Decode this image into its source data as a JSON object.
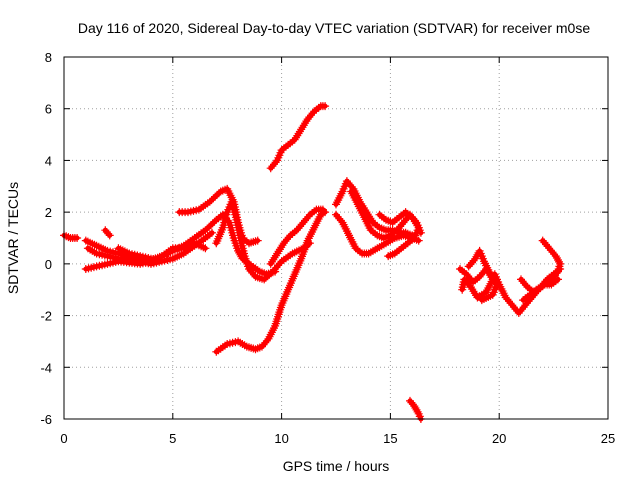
{
  "chart_data": {
    "type": "scatter",
    "title": "Day 116 of 2020, Sidereal Day-to-day VTEC variation (SDTVAR) for receiver m0se",
    "xlabel": "GPS time / hours",
    "ylabel": "SDTVAR / TECUs",
    "xlim": [
      0,
      25
    ],
    "ylim": [
      -6,
      8
    ],
    "xticks": [
      "0",
      "5",
      "10",
      "15",
      "20",
      "25"
    ],
    "yticks": [
      "-6",
      "-4",
      "-2",
      "0",
      "2",
      "4",
      "6",
      "8"
    ],
    "grid": true,
    "marker": "plus",
    "colors": {
      "series": "#ff0000",
      "axes": "#000000",
      "grid": "#a0a0a0"
    },
    "series": [
      {
        "points": [
          [
            0.0,
            1.1
          ],
          [
            0.3,
            1.0
          ],
          [
            0.6,
            1.0
          ]
        ]
      },
      {
        "points": [
          [
            1.0,
            0.9
          ],
          [
            1.5,
            0.7
          ],
          [
            2.0,
            0.5
          ],
          [
            2.5,
            0.4
          ],
          [
            3.0,
            0.3
          ],
          [
            3.5,
            0.2
          ],
          [
            4.0,
            0.15
          ],
          [
            4.5,
            0.3
          ],
          [
            5.0,
            0.5
          ],
          [
            5.5,
            0.7
          ],
          [
            6.0,
            1.0
          ],
          [
            6.5,
            1.3
          ],
          [
            7.0,
            1.7
          ],
          [
            7.3,
            1.9
          ],
          [
            7.6,
            1.6
          ],
          [
            7.8,
            1.0
          ],
          [
            8.0,
            0.5
          ],
          [
            8.2,
            0.2
          ],
          [
            8.5,
            0.0
          ],
          [
            9.0,
            -0.3
          ],
          [
            9.3,
            -0.4
          ],
          [
            9.7,
            -0.3
          ]
        ]
      },
      {
        "points": [
          [
            1.1,
            0.6
          ],
          [
            1.5,
            0.4
          ],
          [
            2.0,
            0.3
          ],
          [
            2.5,
            0.2
          ],
          [
            3.0,
            0.2
          ],
          [
            3.5,
            0.1
          ],
          [
            4.0,
            0.0
          ],
          [
            4.5,
            0.1
          ],
          [
            5.0,
            0.2
          ],
          [
            5.5,
            0.4
          ],
          [
            6.0,
            0.7
          ],
          [
            6.5,
            1.0
          ],
          [
            6.8,
            1.2
          ]
        ]
      },
      {
        "points": [
          [
            1.0,
            -0.2
          ],
          [
            1.5,
            -0.1
          ],
          [
            2.0,
            0.0
          ],
          [
            2.5,
            0.1
          ],
          [
            3.0,
            0.05
          ],
          [
            3.5,
            0.0
          ],
          [
            4.0,
            0.1
          ],
          [
            4.5,
            0.3
          ],
          [
            5.0,
            0.6
          ],
          [
            5.5,
            0.6
          ],
          [
            6.0,
            0.8
          ],
          [
            6.5,
            0.6
          ]
        ]
      },
      {
        "points": [
          [
            1.9,
            1.3
          ],
          [
            2.1,
            1.1
          ]
        ]
      },
      {
        "points": [
          [
            2.5,
            0.6
          ],
          [
            3.0,
            0.4
          ],
          [
            3.5,
            0.3
          ],
          [
            4.0,
            0.2
          ],
          [
            4.4,
            0.15
          ]
        ]
      },
      {
        "points": [
          [
            5.3,
            2.0
          ],
          [
            5.7,
            2.0
          ],
          [
            6.2,
            2.1
          ],
          [
            6.7,
            2.4
          ],
          [
            7.2,
            2.8
          ],
          [
            7.5,
            2.9
          ],
          [
            7.8,
            2.4
          ],
          [
            8.0,
            1.6
          ],
          [
            8.2,
            1.0
          ],
          [
            8.5,
            0.8
          ],
          [
            8.9,
            0.9
          ]
        ]
      },
      {
        "points": [
          [
            7.0,
            0.8
          ],
          [
            7.3,
            1.4
          ],
          [
            7.5,
            2.0
          ],
          [
            7.7,
            2.4
          ],
          [
            7.9,
            1.8
          ],
          [
            8.1,
            1.0
          ],
          [
            8.3,
            0.3
          ],
          [
            8.5,
            -0.2
          ],
          [
            8.8,
            -0.5
          ],
          [
            9.2,
            -0.6
          ],
          [
            9.6,
            -0.3
          ],
          [
            10.0,
            0.1
          ],
          [
            10.5,
            0.4
          ],
          [
            11.0,
            0.6
          ],
          [
            11.3,
            0.8
          ]
        ]
      },
      {
        "points": [
          [
            7.0,
            -3.4
          ],
          [
            7.5,
            -3.1
          ],
          [
            8.0,
            -3.0
          ],
          [
            8.4,
            -3.2
          ],
          [
            8.8,
            -3.3
          ],
          [
            9.1,
            -3.2
          ],
          [
            9.4,
            -2.9
          ],
          [
            9.7,
            -2.4
          ],
          [
            10.0,
            -1.6
          ],
          [
            10.3,
            -1.0
          ],
          [
            10.6,
            -0.4
          ],
          [
            10.9,
            0.2
          ],
          [
            11.2,
            0.9
          ],
          [
            11.5,
            1.4
          ],
          [
            11.8,
            1.9
          ],
          [
            12.0,
            2.0
          ]
        ]
      },
      {
        "points": [
          [
            9.5,
            0.0
          ],
          [
            9.8,
            0.4
          ],
          [
            10.1,
            0.8
          ],
          [
            10.4,
            1.1
          ],
          [
            10.7,
            1.3
          ],
          [
            11.0,
            1.6
          ],
          [
            11.3,
            1.9
          ],
          [
            11.6,
            2.1
          ],
          [
            11.9,
            2.1
          ]
        ]
      },
      {
        "points": [
          [
            9.5,
            3.7
          ],
          [
            9.8,
            4.0
          ],
          [
            10.0,
            4.4
          ],
          [
            10.3,
            4.6
          ],
          [
            10.6,
            4.8
          ],
          [
            10.9,
            5.2
          ],
          [
            11.2,
            5.6
          ],
          [
            11.5,
            5.9
          ],
          [
            11.8,
            6.1
          ],
          [
            12.0,
            6.1
          ]
        ]
      },
      {
        "points": [
          [
            12.5,
            2.3
          ],
          [
            12.8,
            2.8
          ],
          [
            13.0,
            3.2
          ],
          [
            13.3,
            2.9
          ],
          [
            13.6,
            2.4
          ],
          [
            13.9,
            2.0
          ],
          [
            14.2,
            1.6
          ],
          [
            14.5,
            1.4
          ],
          [
            14.8,
            1.3
          ],
          [
            15.1,
            1.3
          ],
          [
            15.4,
            1.2
          ],
          [
            15.7,
            1.2
          ],
          [
            16.0,
            1.1
          ]
        ]
      },
      {
        "points": [
          [
            12.5,
            1.9
          ],
          [
            12.8,
            1.6
          ],
          [
            13.1,
            1.1
          ],
          [
            13.4,
            0.6
          ],
          [
            13.7,
            0.4
          ],
          [
            14.0,
            0.4
          ],
          [
            14.4,
            0.6
          ],
          [
            14.8,
            0.8
          ],
          [
            15.2,
            1.0
          ],
          [
            15.6,
            1.1
          ],
          [
            16.0,
            1.0
          ],
          [
            16.3,
            0.9
          ]
        ]
      },
      {
        "points": [
          [
            13.2,
            2.8
          ],
          [
            13.5,
            2.3
          ],
          [
            13.8,
            1.8
          ],
          [
            14.1,
            1.3
          ],
          [
            14.4,
            1.1
          ],
          [
            14.7,
            1.0
          ],
          [
            15.0,
            1.1
          ],
          [
            15.3,
            1.3
          ],
          [
            15.6,
            1.6
          ],
          [
            15.9,
            1.9
          ],
          [
            16.2,
            1.6
          ],
          [
            16.4,
            1.2
          ]
        ]
      },
      {
        "points": [
          [
            14.5,
            1.9
          ],
          [
            14.8,
            1.7
          ],
          [
            15.1,
            1.6
          ],
          [
            15.4,
            1.8
          ],
          [
            15.7,
            2.0
          ],
          [
            16.0,
            1.8
          ],
          [
            16.3,
            1.4
          ],
          [
            16.1,
            1.0
          ],
          [
            15.8,
            0.8
          ],
          [
            15.5,
            0.6
          ],
          [
            15.2,
            0.4
          ],
          [
            14.9,
            0.3
          ]
        ]
      },
      {
        "points": [
          [
            15.9,
            -5.3
          ],
          [
            16.1,
            -5.5
          ],
          [
            16.3,
            -5.8
          ],
          [
            16.4,
            -6.0
          ]
        ]
      },
      {
        "points": [
          [
            18.2,
            -0.2
          ],
          [
            18.5,
            -0.4
          ],
          [
            18.8,
            -0.7
          ],
          [
            19.1,
            -0.5
          ],
          [
            19.4,
            -0.2
          ],
          [
            19.7,
            -0.6
          ],
          [
            19.4,
            -1.1
          ],
          [
            19.0,
            -1.3
          ],
          [
            18.7,
            -0.9
          ],
          [
            18.4,
            -0.6
          ],
          [
            18.3,
            -1.0
          ]
        ]
      },
      {
        "points": [
          [
            18.6,
            -0.1
          ],
          [
            18.9,
            0.2
          ],
          [
            19.1,
            0.5
          ],
          [
            19.3,
            0.1
          ],
          [
            19.6,
            -0.4
          ],
          [
            19.9,
            -0.8
          ],
          [
            19.7,
            -1.2
          ],
          [
            19.2,
            -1.4
          ]
        ]
      },
      {
        "points": [
          [
            19.8,
            -0.4
          ],
          [
            20.0,
            -0.8
          ],
          [
            20.3,
            -1.3
          ],
          [
            20.6,
            -1.6
          ],
          [
            20.9,
            -1.9
          ],
          [
            21.2,
            -1.6
          ],
          [
            21.5,
            -1.3
          ],
          [
            21.8,
            -1.0
          ],
          [
            22.1,
            -0.8
          ],
          [
            22.4,
            -0.8
          ],
          [
            22.7,
            -0.6
          ]
        ]
      },
      {
        "points": [
          [
            21.0,
            -0.6
          ],
          [
            21.3,
            -0.9
          ],
          [
            21.6,
            -1.1
          ],
          [
            21.9,
            -0.9
          ],
          [
            22.2,
            -0.6
          ],
          [
            22.5,
            -0.4
          ],
          [
            22.8,
            -0.2
          ]
        ]
      },
      {
        "points": [
          [
            22.0,
            0.9
          ],
          [
            22.3,
            0.6
          ],
          [
            22.6,
            0.3
          ],
          [
            22.8,
            0.0
          ],
          [
            22.7,
            -0.3
          ],
          [
            22.5,
            -0.5
          ],
          [
            22.1,
            -0.8
          ],
          [
            21.7,
            -1.0
          ],
          [
            21.4,
            -1.2
          ],
          [
            21.1,
            -1.4
          ]
        ]
      }
    ]
  }
}
